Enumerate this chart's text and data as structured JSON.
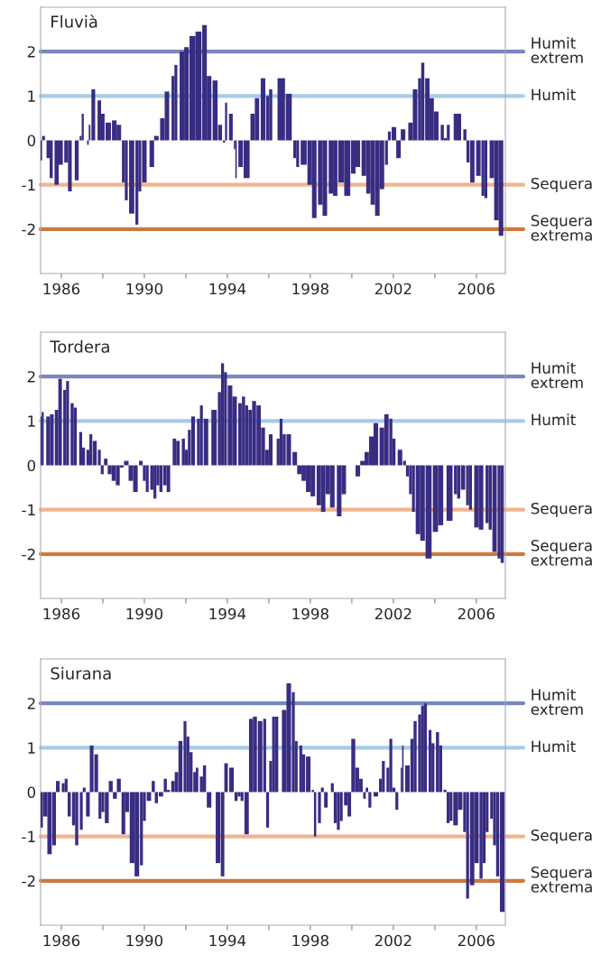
{
  "chart_data": [
    {
      "type": "bar",
      "title": "Fluvià",
      "xlim": [
        1985,
        2007.4
      ],
      "ylim": [
        -3,
        3
      ],
      "yticks": [
        -2,
        -1,
        0,
        1,
        2
      ],
      "xticks": [
        {
          "value": 1986,
          "label": "1986"
        },
        {
          "value": 1988,
          "label": null
        },
        {
          "value": 1990,
          "label": "1990"
        },
        {
          "value": 1992,
          "label": null
        },
        {
          "value": 1994,
          "label": "1994"
        },
        {
          "value": 1996,
          "label": null
        },
        {
          "value": 1998,
          "label": "1998"
        },
        {
          "value": 2000,
          "label": null
        },
        {
          "value": 2002,
          "label": "2002"
        },
        {
          "value": 2004,
          "label": null
        },
        {
          "value": 2006,
          "label": "2006"
        }
      ],
      "grid": false,
      "legend": false,
      "ref_lines": [
        {
          "axis": "y",
          "value": 2,
          "label": "Humit extrem",
          "color": "#7b86c0"
        },
        {
          "axis": "y",
          "value": 1,
          "label": "Humit",
          "color": "#a6cbea"
        },
        {
          "axis": "y",
          "value": -1,
          "label": "Sequera",
          "color": "#f0b48f"
        },
        {
          "axis": "y",
          "value": -2,
          "label": "Sequera extrema",
          "color": "#cd7a3f"
        }
      ],
      "series": [
        {
          "color": "#382d82",
          "x": [
            1985.0,
            1985.14,
            1985.36,
            1985.51,
            1985.77,
            1985.97,
            1986.23,
            1986.41,
            1986.74,
            1986.93,
            1987.03,
            1987.28,
            1987.36,
            1987.54,
            1987.83,
            1988.0,
            1988.26,
            1988.55,
            1988.77,
            1988.99,
            1989.13,
            1989.39,
            1989.64,
            1989.78,
            1990.0,
            1990.36,
            1990.58,
            1990.87,
            1991.09,
            1991.38,
            1991.52,
            1991.81,
            1992.03,
            1992.32,
            1992.61,
            1992.9,
            1993.12,
            1993.41,
            1993.65,
            1993.84,
            1993.94,
            1994.17,
            1994.35,
            1994.42,
            1994.64,
            1994.93,
            1995.22,
            1995.43,
            1995.72,
            1995.94,
            1996.09,
            1996.6,
            1996.96,
            1997.25,
            1997.39,
            1997.68,
            1997.97,
            1998.19,
            1998.48,
            1998.7,
            1998.99,
            1999.2,
            1999.49,
            1999.78,
            2000.07,
            2000.29,
            2000.58,
            2000.8,
            2001.01,
            2001.23,
            2001.45,
            2001.67,
            2001.81,
            2002.03,
            2002.25,
            2002.47,
            2002.83,
            2003.05,
            2003.27,
            2003.42,
            2003.64,
            2003.85,
            2004.07,
            2004.36,
            2004.51,
            2004.65,
            2005.09,
            2005.45,
            2005.6,
            2005.81,
            2006.1,
            2006.32,
            2006.46,
            2006.75,
            2006.97,
            2007.19
          ],
          "values": [
            -0.45,
            0.1,
            -0.4,
            -0.85,
            -1.0,
            -0.55,
            -0.5,
            -1.15,
            -0.9,
            0.1,
            0.6,
            -0.1,
            0.35,
            1.15,
            0.9,
            0.6,
            0.4,
            0.45,
            0.35,
            -0.95,
            -1.35,
            -1.65,
            -1.9,
            -1.15,
            -0.95,
            -0.6,
            0.1,
            0.5,
            1.1,
            1.45,
            1.7,
            2.0,
            2.1,
            2.35,
            2.45,
            2.6,
            1.45,
            1.35,
            0.35,
            -0.05,
            0.85,
            0.6,
            -0.2,
            -0.85,
            -0.6,
            -0.85,
            0.6,
            0.95,
            1.4,
            1.0,
            1.15,
            1.4,
            1.05,
            -0.4,
            -0.6,
            -0.55,
            -1.0,
            -1.75,
            -1.45,
            -1.7,
            -1.2,
            -1.25,
            -0.95,
            -1.25,
            -0.75,
            -0.6,
            -0.8,
            -1.2,
            -1.45,
            -1.7,
            -1.1,
            -0.55,
            0.2,
            0.3,
            -0.4,
            0.25,
            0.4,
            1.15,
            1.4,
            1.75,
            1.4,
            0.95,
            0.65,
            0.35,
            0.05,
            0.35,
            0.6,
            0.25,
            -0.5,
            -0.95,
            -0.8,
            -1.25,
            -1.3,
            -0.85,
            -1.8,
            -2.15
          ]
        }
      ]
    },
    {
      "type": "bar",
      "title": "Tordera",
      "xlim": [
        1985,
        2007.4
      ],
      "ylim": [
        -3,
        3
      ],
      "yticks": [
        -2,
        -1,
        0,
        1,
        2
      ],
      "xticks": [
        {
          "value": 1986,
          "label": "1986"
        },
        {
          "value": 1988,
          "label": null
        },
        {
          "value": 1990,
          "label": "1990"
        },
        {
          "value": 1992,
          "label": null
        },
        {
          "value": 1994,
          "label": "1994"
        },
        {
          "value": 1996,
          "label": null
        },
        {
          "value": 1998,
          "label": "1998"
        },
        {
          "value": 2000,
          "label": null
        },
        {
          "value": 2002,
          "label": "2002"
        },
        {
          "value": 2004,
          "label": null
        },
        {
          "value": 2006,
          "label": "2006"
        }
      ],
      "grid": false,
      "legend": false,
      "ref_lines": [
        {
          "axis": "y",
          "value": 2,
          "label": "Humit extrem",
          "color": "#7b86c0"
        },
        {
          "axis": "y",
          "value": 1,
          "label": "Humit",
          "color": "#a6cbea"
        },
        {
          "axis": "y",
          "value": -1,
          "label": "Sequera",
          "color": "#f0b48f"
        },
        {
          "axis": "y",
          "value": -2,
          "label": "Sequera extrema",
          "color": "#cd7a3f"
        }
      ],
      "series": [
        {
          "color": "#382d82",
          "x": [
            1985.0,
            1985.1,
            1985.36,
            1985.54,
            1985.77,
            1985.94,
            1986.16,
            1986.3,
            1986.52,
            1986.67,
            1986.93,
            1987.07,
            1987.28,
            1987.42,
            1987.61,
            1987.83,
            1987.97,
            1988.14,
            1988.33,
            1988.52,
            1988.72,
            1988.91,
            1989.13,
            1989.35,
            1989.57,
            1989.83,
            1990.0,
            1990.14,
            1990.36,
            1990.51,
            1990.65,
            1990.8,
            1990.99,
            1991.16,
            1991.45,
            1991.62,
            1991.88,
            1992.03,
            1992.17,
            1992.35,
            1992.61,
            1992.75,
            1992.97,
            1993.36,
            1993.62,
            1993.77,
            1993.91,
            1994.13,
            1994.35,
            1994.61,
            1994.78,
            1994.93,
            1995.1,
            1995.29,
            1995.51,
            1995.72,
            1995.91,
            1996.09,
            1996.45,
            1996.59,
            1996.74,
            1996.96,
            1997.25,
            1997.47,
            1997.68,
            1997.9,
            1998.12,
            1998.41,
            1998.62,
            1998.84,
            1999.06,
            1999.39,
            1999.61,
            2000.29,
            2000.51,
            2000.72,
            2000.94,
            2001.16,
            2001.45,
            2001.67,
            2001.88,
            2002.03,
            2002.32,
            2002.54,
            2002.68,
            2002.83,
            2002.97,
            2003.19,
            2003.41,
            2003.7,
            2004.03,
            2004.28,
            2004.71,
            2005.0,
            2005.15,
            2005.36,
            2005.58,
            2005.72,
            2006.01,
            2006.23,
            2006.52,
            2006.67,
            2006.88,
            2007.1,
            2007.25
          ],
          "values": [
            1.1,
            1.2,
            1.1,
            1.15,
            1.25,
            1.95,
            1.7,
            1.9,
            1.4,
            1.3,
            0.75,
            0.4,
            0.35,
            0.7,
            0.55,
            0.35,
            -0.2,
            0.15,
            -0.2,
            -0.35,
            -0.45,
            -0.05,
            0.1,
            -0.35,
            -0.6,
            0.1,
            -0.35,
            -0.6,
            -0.55,
            -0.75,
            -0.45,
            -0.6,
            -0.45,
            -0.6,
            0.6,
            0.55,
            0.6,
            0.35,
            0.8,
            1.1,
            1.05,
            1.35,
            1.05,
            1.25,
            1.65,
            2.3,
            2.1,
            1.8,
            1.55,
            1.4,
            1.55,
            1.35,
            1.25,
            1.45,
            1.35,
            0.85,
            0.35,
            0.7,
            0.6,
            1.05,
            0.7,
            0.7,
            0.3,
            -0.2,
            -0.35,
            -0.6,
            -0.7,
            -0.9,
            -1.05,
            -0.65,
            -0.95,
            -1.15,
            -0.65,
            -0.25,
            0.1,
            0.3,
            0.65,
            0.95,
            0.85,
            1.15,
            1.05,
            0.6,
            0.35,
            0.1,
            -0.25,
            -0.65,
            -1.05,
            -1.55,
            -1.7,
            -2.1,
            -1.5,
            -1.35,
            -1.25,
            -0.65,
            -0.75,
            -0.55,
            -0.9,
            -1.0,
            -1.4,
            -1.45,
            -1.3,
            -1.45,
            -1.95,
            -2.1,
            -2.2
          ]
        }
      ]
    },
    {
      "type": "bar",
      "title": "Siurana",
      "xlim": [
        1985,
        2007.4
      ],
      "ylim": [
        -3,
        3
      ],
      "yticks": [
        -2,
        -1,
        0,
        1,
        2
      ],
      "xticks": [
        {
          "value": 1986,
          "label": "1986"
        },
        {
          "value": 1988,
          "label": null
        },
        {
          "value": 1990,
          "label": "1990"
        },
        {
          "value": 1992,
          "label": null
        },
        {
          "value": 1994,
          "label": "1994"
        },
        {
          "value": 1996,
          "label": null
        },
        {
          "value": 1998,
          "label": "1998"
        },
        {
          "value": 2000,
          "label": null
        },
        {
          "value": 2002,
          "label": "2002"
        },
        {
          "value": 2004,
          "label": null
        },
        {
          "value": 2006,
          "label": "2006"
        }
      ],
      "grid": false,
      "legend": false,
      "ref_lines": [
        {
          "axis": "y",
          "value": 2,
          "label": "Humit extrem",
          "color": "#7b86c0"
        },
        {
          "axis": "y",
          "value": 1,
          "label": "Humit",
          "color": "#a6cbea"
        },
        {
          "axis": "y",
          "value": -1,
          "label": "Sequera",
          "color": "#f0b48f"
        },
        {
          "axis": "y",
          "value": -2,
          "label": "Sequera extrema",
          "color": "#cd7a3f"
        }
      ],
      "series": [
        {
          "color": "#382d82",
          "x": [
            1985.0,
            1985.22,
            1985.43,
            1985.65,
            1985.83,
            1986.09,
            1986.23,
            1986.38,
            1986.59,
            1986.74,
            1986.96,
            1987.1,
            1987.28,
            1987.46,
            1987.68,
            1987.86,
            1988.0,
            1988.19,
            1988.38,
            1988.58,
            1988.77,
            1988.99,
            1989.17,
            1989.41,
            1989.64,
            1989.86,
            1990.0,
            1990.22,
            1990.43,
            1990.58,
            1990.8,
            1991.01,
            1991.16,
            1991.38,
            1991.55,
            1991.74,
            1991.96,
            1992.1,
            1992.25,
            1992.42,
            1992.54,
            1992.75,
            1992.9,
            1993.12,
            1993.55,
            1993.77,
            1993.94,
            1994.2,
            1994.42,
            1994.57,
            1994.71,
            1994.93,
            1995.14,
            1995.33,
            1995.58,
            1995.8,
            1995.94,
            1996.09,
            1996.23,
            1996.38,
            1996.74,
            1996.96,
            1997.18,
            1997.32,
            1997.54,
            1997.68,
            1997.9,
            1998.12,
            1998.23,
            1998.44,
            1998.58,
            1998.75,
            1999.06,
            1999.2,
            1999.35,
            1999.49,
            1999.71,
            1999.88,
            2000.07,
            2000.26,
            2000.44,
            2000.61,
            2000.73,
            2000.87,
            2001.16,
            2001.38,
            2001.52,
            2001.74,
            2001.88,
            2002.03,
            2002.17,
            2002.39,
            2002.46,
            2002.68,
            2002.9,
            2003.05,
            2003.27,
            2003.41,
            2003.55,
            2003.77,
            2003.91,
            2004.13,
            2004.28,
            2004.49,
            2004.64,
            2004.78,
            2005.0,
            2005.22,
            2005.44,
            2005.58,
            2005.8,
            2006.01,
            2006.23,
            2006.38,
            2006.52,
            2006.74,
            2006.88,
            2007.03,
            2007.25
          ],
          "values": [
            -0.8,
            -0.55,
            -1.4,
            -1.2,
            0.25,
            0.2,
            0.3,
            -0.55,
            -0.75,
            -1.2,
            -0.85,
            0.1,
            -0.55,
            1.05,
            0.85,
            -0.6,
            -0.45,
            -0.7,
            0.25,
            -0.15,
            0.3,
            -0.95,
            -0.45,
            -1.6,
            -1.9,
            -1.65,
            -0.65,
            -0.2,
            0.25,
            -0.25,
            -0.1,
            0.3,
            0.05,
            0.25,
            0.45,
            1.15,
            1.6,
            1.25,
            0.9,
            0.45,
            0.55,
            0.35,
            0.6,
            -0.35,
            -1.6,
            -1.9,
            0.65,
            0.55,
            -0.2,
            -0.1,
            -0.2,
            -0.95,
            1.65,
            1.7,
            1.6,
            1.65,
            -0.8,
            0.7,
            1.7,
            1.7,
            1.85,
            2.45,
            2.25,
            1.15,
            1.05,
            0.85,
            0.8,
            0.05,
            -1.0,
            -0.7,
            0.1,
            -0.35,
            0.2,
            -0.7,
            -0.85,
            -0.65,
            -0.3,
            -0.55,
            1.2,
            0.55,
            0.3,
            -0.15,
            0.1,
            -0.35,
            -0.1,
            0.3,
            0.7,
            0.55,
            1.2,
            0.1,
            -0.4,
            0.55,
            1.05,
            0.6,
            1.2,
            1.6,
            1.75,
            1.95,
            2.0,
            1.4,
            1.1,
            1.35,
            1.05,
            0.05,
            -0.7,
            -0.65,
            -0.75,
            -0.4,
            -0.9,
            -2.4,
            -2.1,
            -1.6,
            -1.95,
            -1.6,
            -0.9,
            -0.6,
            -1.2,
            -1.9,
            -2.7
          ]
        }
      ]
    }
  ]
}
